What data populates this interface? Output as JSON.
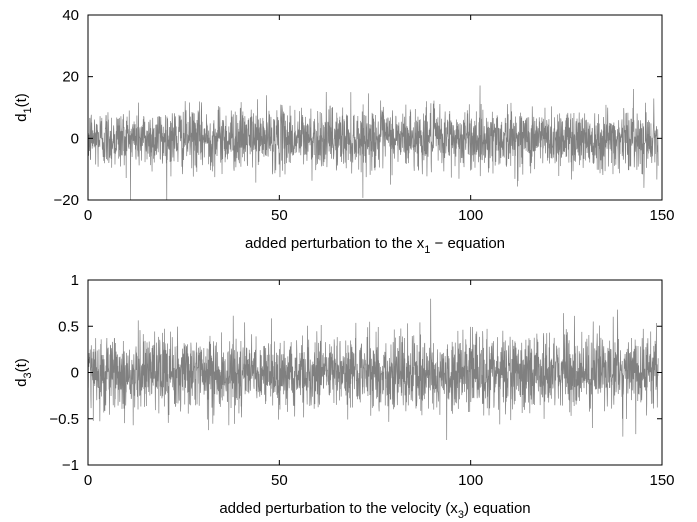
{
  "chart_data": [
    {
      "type": "line",
      "description": "noise time series",
      "x_range": [
        0,
        150
      ],
      "xlim": [
        0,
        150
      ],
      "ylim": [
        -20,
        40
      ],
      "x_ticks": [
        0,
        50,
        100,
        150
      ],
      "y_ticks": [
        -20,
        0,
        20,
        40
      ],
      "x_tick_labels": [
        "0",
        "50",
        "100",
        "150"
      ],
      "y_tick_labels": [
        "−20",
        "0",
        "20",
        "40"
      ],
      "ylabel": {
        "main": "d",
        "sub": "1",
        "tail": "(t)"
      },
      "xlabel": {
        "main": "added perturbation to the x",
        "sub": "1",
        "tail": " − equation"
      },
      "series": [
        {
          "color": "#808080",
          "typical_std": 5,
          "typical_max": 20,
          "typical_min": -23,
          "end_x": 149
        }
      ],
      "grid": false,
      "box": true
    },
    {
      "type": "line",
      "description": "noise time series",
      "x_range": [
        0,
        150
      ],
      "xlim": [
        0,
        150
      ],
      "ylim": [
        -1,
        1
      ],
      "x_ticks": [
        0,
        50,
        100,
        150
      ],
      "y_ticks": [
        -1,
        -0.5,
        0,
        0.5,
        1
      ],
      "x_tick_labels": [
        "0",
        "50",
        "100",
        "150"
      ],
      "y_tick_labels": [
        "−1",
        "−0.5",
        "0",
        "0.5",
        "1"
      ],
      "ylabel": {
        "main": "d",
        "sub": "3",
        "tail": "(t)"
      },
      "xlabel": {
        "main": "added perturbation to the velocity (x",
        "sub": "3",
        "tail": ") equation"
      },
      "series": [
        {
          "color": "#808080",
          "typical_std": 0.2,
          "typical_max": 0.82,
          "typical_min": -0.8,
          "end_x": 149
        }
      ],
      "grid": false,
      "box": true
    }
  ]
}
